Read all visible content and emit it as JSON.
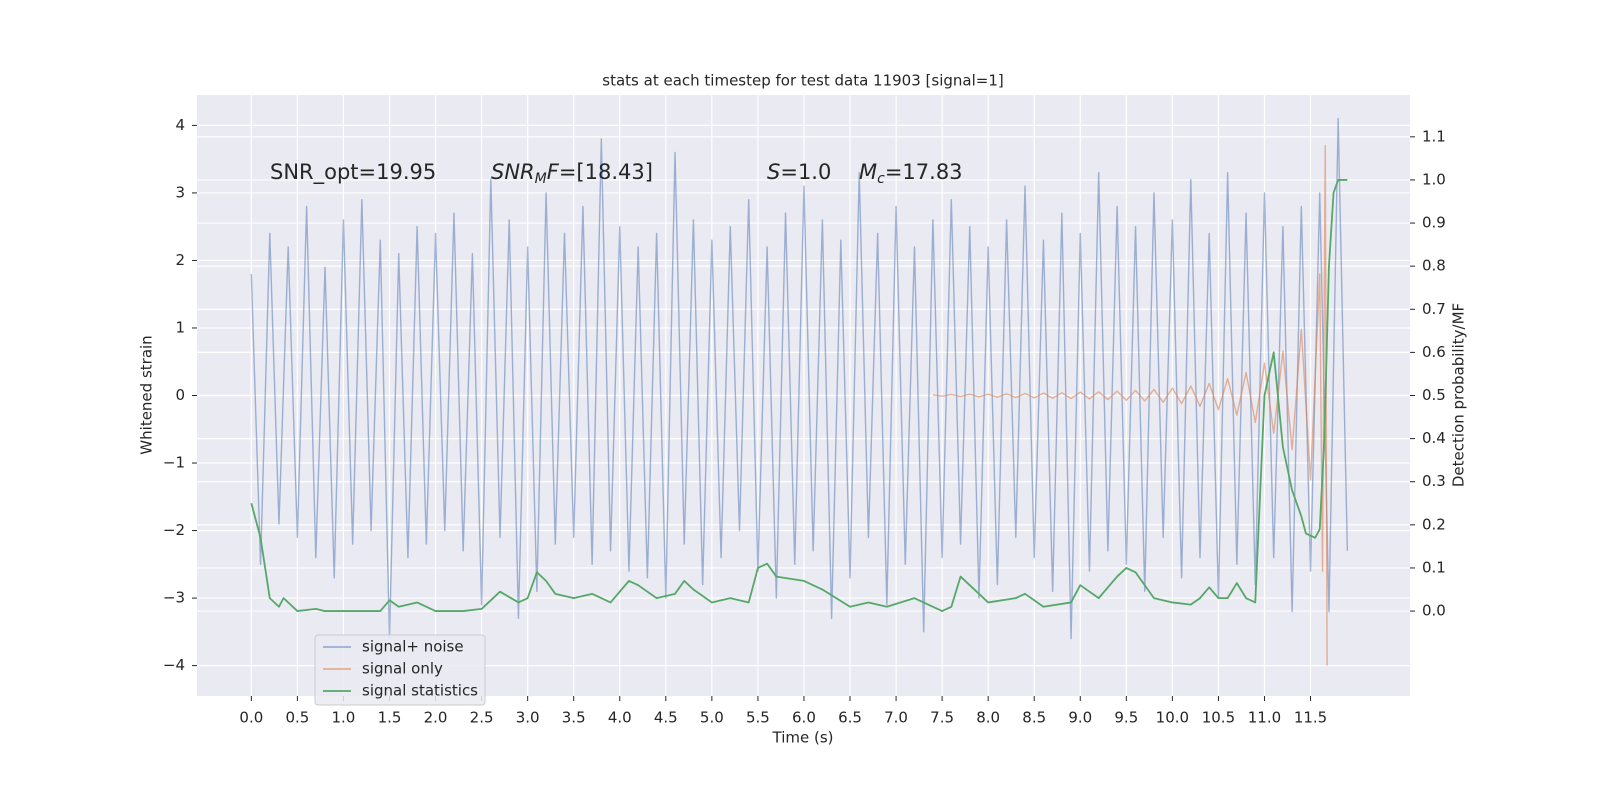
{
  "chart_data": {
    "type": "line",
    "title": "stats at each timestep for test data 11903 [signal=1]",
    "x_label": "Time (s)",
    "y_label": "Whitened strain",
    "y2_label": "Detection probability/MF",
    "xlim": [
      -0.59,
      12.58
    ],
    "ylim": [
      -4.45,
      4.45
    ],
    "y2lim": [
      -0.197,
      1.197
    ],
    "xticks": [
      {
        "value": 0,
        "label": "0.0"
      },
      0.5,
      {
        "value": 1,
        "label": "1.0"
      },
      1.5,
      {
        "value": 2,
        "label": "2.0"
      },
      2.5,
      {
        "value": 3,
        "label": "3.0"
      },
      3.5,
      {
        "value": 4,
        "label": "4.0"
      },
      4.5,
      {
        "value": 5,
        "label": "5.0"
      },
      5.5,
      {
        "value": 6,
        "label": "6.0"
      },
      6.5,
      {
        "value": 7,
        "label": "7.0"
      },
      7.5,
      {
        "value": 8,
        "label": "8.0"
      },
      8.5,
      {
        "value": 9,
        "label": "9.0"
      },
      9.5,
      {
        "value": 10,
        "label": "10.0"
      },
      10.5,
      {
        "value": 11,
        "label": "11.0"
      },
      11.5
    ],
    "yticks": [
      {
        "value": -4,
        "label": "−4"
      },
      {
        "value": -3,
        "label": "−3"
      },
      {
        "value": -2,
        "label": "−2"
      },
      {
        "value": -1,
        "label": "−1"
      },
      0,
      1,
      2,
      3,
      4
    ],
    "y2ticks": [
      {
        "value": 0,
        "label": "0.0"
      },
      0.1,
      0.2,
      0.3,
      0.4,
      0.5,
      0.6,
      0.7,
      0.8,
      0.9,
      {
        "value": 1,
        "label": "1.0"
      },
      1.1
    ],
    "grid": true,
    "legend": "lower left",
    "annotations": [
      {
        "parts": [
          {
            "text": "SNR_opt=19.95"
          }
        ]
      },
      {
        "parts": [
          {
            "text": "SNR",
            "style": "italic"
          },
          {
            "text": "M",
            "style": "sub"
          },
          {
            "text": "F",
            "style": "italic"
          },
          {
            "text": "=[18.43]"
          }
        ]
      },
      {
        "parts": [
          {
            "text": "S",
            "style": "italic"
          },
          {
            "text": "=1.0"
          }
        ]
      },
      {
        "parts": [
          {
            "text": "M",
            "style": "italic"
          },
          {
            "text": "c",
            "style": "sub"
          },
          {
            "text": "=17.83"
          }
        ]
      }
    ],
    "series": [
      {
        "name": "signal+ noise",
        "color": "#4c72b0",
        "opacity": 0.5,
        "x": [
          0.0,
          0.1,
          0.2,
          0.3,
          0.4,
          0.5,
          0.6,
          0.7,
          0.8,
          0.9,
          1.0,
          1.1,
          1.2,
          1.3,
          1.4,
          1.5,
          1.6,
          1.7,
          1.8,
          1.9,
          2.0,
          2.1,
          2.2,
          2.3,
          2.4,
          2.5,
          2.6,
          2.7,
          2.8,
          2.9,
          3.0,
          3.1,
          3.2,
          3.3,
          3.4,
          3.5,
          3.6,
          3.7,
          3.8,
          3.9,
          4.0,
          4.1,
          4.2,
          4.3,
          4.4,
          4.5,
          4.6,
          4.7,
          4.8,
          4.9,
          5.0,
          5.1,
          5.2,
          5.3,
          5.4,
          5.5,
          5.6,
          5.7,
          5.8,
          5.9,
          6.0,
          6.1,
          6.2,
          6.3,
          6.4,
          6.5,
          6.6,
          6.7,
          6.8,
          6.9,
          7.0,
          7.1,
          7.2,
          7.3,
          7.4,
          7.5,
          7.6,
          7.7,
          7.8,
          7.9,
          8.0,
          8.1,
          8.2,
          8.3,
          8.4,
          8.5,
          8.6,
          8.7,
          8.8,
          8.9,
          9.0,
          9.1,
          9.2,
          9.3,
          9.4,
          9.5,
          9.6,
          9.7,
          9.8,
          9.9,
          10.0,
          10.1,
          10.2,
          10.3,
          10.4,
          10.5,
          10.6,
          10.7,
          10.8,
          10.9,
          11.0,
          11.1,
          11.2,
          11.3,
          11.4,
          11.5,
          11.6,
          11.7,
          11.8,
          11.9
        ],
        "values": [
          1.8,
          -2.5,
          2.4,
          -1.9,
          2.2,
          -2.1,
          2.8,
          -2.4,
          1.9,
          -2.7,
          2.6,
          -2.2,
          2.9,
          -2.0,
          2.3,
          -3.6,
          2.1,
          -2.4,
          2.5,
          -2.2,
          2.4,
          -2.0,
          2.7,
          -2.3,
          2.1,
          -3.1,
          3.2,
          -2.1,
          2.6,
          -3.3,
          2.2,
          -2.9,
          3.0,
          -2.2,
          2.4,
          -2.1,
          2.8,
          -2.5,
          3.8,
          -2.3,
          2.5,
          -2.6,
          2.2,
          -2.7,
          2.4,
          -3.0,
          3.6,
          -2.2,
          2.6,
          -2.8,
          2.3,
          -2.4,
          2.5,
          -2.0,
          2.9,
          -2.6,
          2.2,
          -3.0,
          2.7,
          -2.5,
          3.1,
          -2.3,
          2.6,
          -3.3,
          2.3,
          -2.7,
          3.3,
          -2.1,
          2.4,
          -3.1,
          2.8,
          -2.5,
          2.2,
          -3.5,
          2.6,
          -2.4,
          2.9,
          -2.2,
          2.5,
          -3.0,
          2.2,
          -2.8,
          2.6,
          -2.1,
          3.1,
          -2.4,
          2.3,
          -2.9,
          2.7,
          -3.6,
          2.4,
          -2.6,
          3.3,
          -2.3,
          2.8,
          -2.5,
          2.5,
          -2.9,
          3.0,
          -2.1,
          2.6,
          -2.7,
          3.2,
          -2.4,
          2.4,
          -3.0,
          3.3,
          -2.5,
          2.7,
          -2.8,
          3.0,
          -2.4,
          2.5,
          -3.2,
          2.8,
          -2.6,
          3.0,
          -3.2,
          4.1,
          -2.3
        ]
      },
      {
        "name": "signal only",
        "color": "#dd8452",
        "opacity": 0.6,
        "x": [
          7.4,
          7.5,
          7.6,
          7.7,
          7.8,
          7.9,
          8.0,
          8.1,
          8.2,
          8.3,
          8.4,
          8.5,
          8.6,
          8.7,
          8.8,
          8.9,
          9.0,
          9.1,
          9.2,
          9.3,
          9.4,
          9.5,
          9.6,
          9.7,
          9.8,
          9.9,
          10.0,
          10.1,
          10.2,
          10.3,
          10.4,
          10.5,
          10.6,
          10.7,
          10.8,
          10.9,
          11.0,
          11.1,
          11.2,
          11.3,
          11.4,
          11.5,
          11.6,
          11.63,
          11.66,
          11.68
        ],
        "values": [
          0.01,
          -0.01,
          0.015,
          -0.015,
          0.02,
          -0.02,
          0.02,
          -0.025,
          0.025,
          -0.03,
          0.03,
          -0.035,
          0.035,
          -0.04,
          0.04,
          -0.045,
          0.05,
          -0.05,
          0.055,
          -0.06,
          0.065,
          -0.07,
          0.075,
          -0.08,
          0.09,
          -0.1,
          0.11,
          -0.12,
          0.14,
          -0.16,
          0.18,
          -0.21,
          0.25,
          -0.29,
          0.34,
          -0.4,
          0.48,
          -0.56,
          0.66,
          -0.8,
          0.98,
          -1.25,
          1.8,
          -2.6,
          3.7,
          -4.0
        ]
      },
      {
        "name": "signal statistics",
        "color": "#55a868",
        "opacity": 1,
        "axis": "y2",
        "x": [
          0.0,
          0.1,
          0.2,
          0.3,
          0.35,
          0.5,
          0.7,
          0.8,
          1.0,
          1.2,
          1.4,
          1.5,
          1.6,
          1.8,
          2.0,
          2.3,
          2.5,
          2.7,
          2.9,
          3.0,
          3.1,
          3.2,
          3.3,
          3.5,
          3.7,
          3.9,
          4.1,
          4.2,
          4.4,
          4.6,
          4.7,
          4.8,
          5.0,
          5.2,
          5.4,
          5.5,
          5.6,
          5.7,
          6.0,
          6.2,
          6.5,
          6.7,
          6.9,
          7.2,
          7.5,
          7.6,
          7.7,
          7.8,
          8.0,
          8.3,
          8.4,
          8.6,
          8.9,
          9.0,
          9.2,
          9.4,
          9.5,
          9.6,
          9.8,
          10.0,
          10.2,
          10.3,
          10.4,
          10.5,
          10.6,
          10.7,
          10.8,
          10.9,
          11.0,
          11.1,
          11.2,
          11.3,
          11.4,
          11.45,
          11.55,
          11.6,
          11.65,
          11.7,
          11.75,
          11.8,
          11.9
        ],
        "values": [
          0.25,
          0.17,
          0.03,
          0.01,
          0.03,
          0.0,
          0.005,
          0.0,
          0.0,
          0.0,
          0.0,
          0.025,
          0.01,
          0.02,
          0.0,
          0.0,
          0.005,
          0.045,
          0.02,
          0.03,
          0.09,
          0.07,
          0.04,
          0.03,
          0.04,
          0.02,
          0.07,
          0.06,
          0.03,
          0.04,
          0.07,
          0.05,
          0.02,
          0.03,
          0.02,
          0.1,
          0.11,
          0.08,
          0.07,
          0.05,
          0.01,
          0.02,
          0.01,
          0.03,
          0.0,
          0.01,
          0.08,
          0.06,
          0.02,
          0.03,
          0.04,
          0.01,
          0.02,
          0.06,
          0.03,
          0.08,
          0.1,
          0.09,
          0.03,
          0.02,
          0.015,
          0.03,
          0.055,
          0.03,
          0.03,
          0.065,
          0.03,
          0.02,
          0.5,
          0.6,
          0.38,
          0.28,
          0.22,
          0.18,
          0.17,
          0.19,
          0.4,
          0.8,
          0.97,
          1.0,
          1.0
        ]
      }
    ]
  }
}
